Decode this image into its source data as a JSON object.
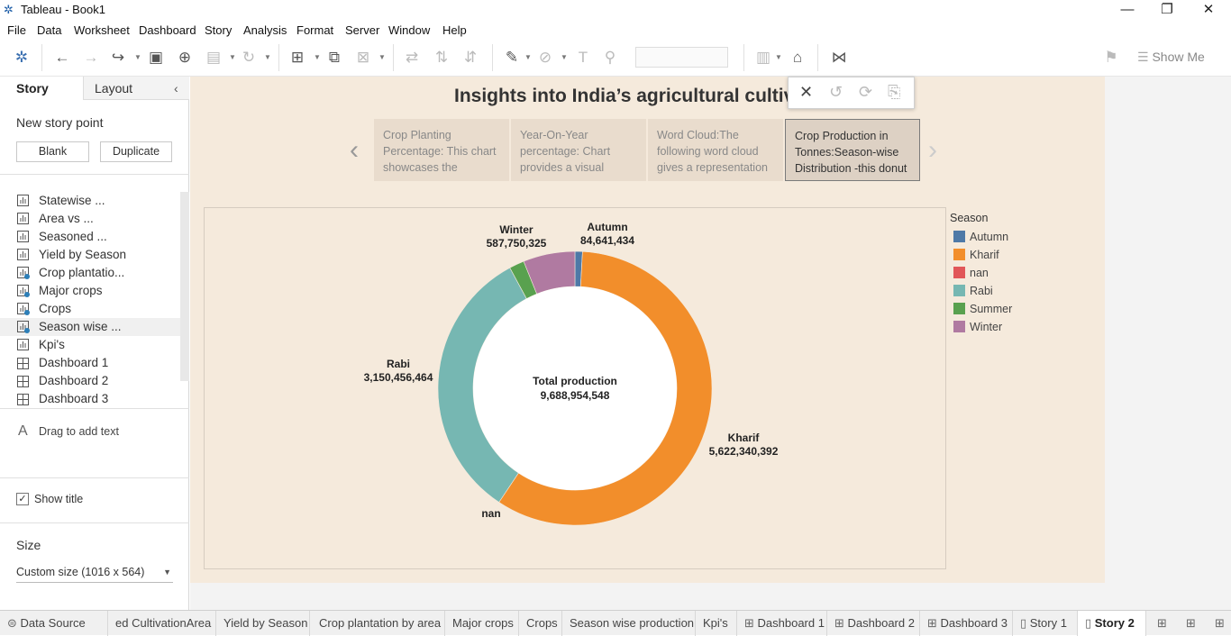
{
  "window": {
    "title": "Tableau - Book1"
  },
  "menu": [
    "File",
    "Data",
    "Worksheet",
    "Dashboard",
    "Story",
    "Analysis",
    "Format",
    "Server",
    "Window",
    "Help"
  ],
  "toolbar": {
    "show_me": "Show Me"
  },
  "left_pane": {
    "tabs": [
      "Story",
      "Layout"
    ],
    "new_point_label": "New story point",
    "blank_label": "Blank",
    "duplicate_label": "Duplicate",
    "sheets": [
      {
        "label": "Statewise ...",
        "kind": "sheet"
      },
      {
        "label": "Area vs ...",
        "kind": "sheet"
      },
      {
        "label": "Seasoned ...",
        "kind": "sheet"
      },
      {
        "label": "Yield by Season",
        "kind": "sheet"
      },
      {
        "label": "Crop plantatio...",
        "kind": "sheet-used"
      },
      {
        "label": "Major crops",
        "kind": "sheet-used"
      },
      {
        "label": "Crops",
        "kind": "sheet-used"
      },
      {
        "label": "Season wise ...",
        "kind": "sheet-used"
      },
      {
        "label": "Kpi's",
        "kind": "sheet"
      },
      {
        "label": "Dashboard 1",
        "kind": "dashboard"
      },
      {
        "label": "Dashboard 2",
        "kind": "dashboard"
      },
      {
        "label": "Dashboard 3",
        "kind": "dashboard"
      }
    ],
    "drag_text": "Drag to add text",
    "show_title_label": "Show title",
    "size_heading": "Size",
    "size_value": "Custom size (1016 x 564)"
  },
  "story": {
    "title": "Insights into India’s agricultural cultiv",
    "points": [
      {
        "text": "Crop Planting Percentage: This chart showcases the"
      },
      {
        "text": "Year-On-Year percentage: Chart provides a visual"
      },
      {
        "text": "Word Cloud:The following word cloud gives a representation"
      },
      {
        "text": "Crop Production in Tonnes:Season-wise Distribution -this donut"
      }
    ]
  },
  "chart_data": {
    "type": "pie",
    "donut": true,
    "center_label": "Total production",
    "center_value": "9,688,954,548",
    "legend_title": "Season",
    "legend_placement": "right",
    "slices": [
      {
        "name": "Autumn",
        "value": 84641434,
        "label": "84,641,434",
        "color": "#4e79a7"
      },
      {
        "name": "Kharif",
        "value": 5622340392,
        "label": "5,622,340,392",
        "color": "#f28e2b"
      },
      {
        "name": "nan",
        "value": 0,
        "label": "",
        "color": "#e15759"
      },
      {
        "name": "Rabi",
        "value": 3150456464,
        "label": "3,150,456,464",
        "color": "#76b7b2"
      },
      {
        "name": "Summer",
        "value": 170000000,
        "label": "",
        "color": "#59a14f"
      },
      {
        "name": "Winter",
        "value": 587750325,
        "label": "587,750,325",
        "color": "#b07aa1"
      }
    ]
  },
  "bottom_tabs": [
    "Data Source",
    "ed CultivationArea",
    "Yield by Season",
    "Crop plantation by area",
    "Major crops",
    "Crops",
    "Season wise production",
    "Kpi's",
    "Dashboard 1",
    "Dashboard 2",
    "Dashboard 3",
    "Story 1",
    "Story 2"
  ]
}
